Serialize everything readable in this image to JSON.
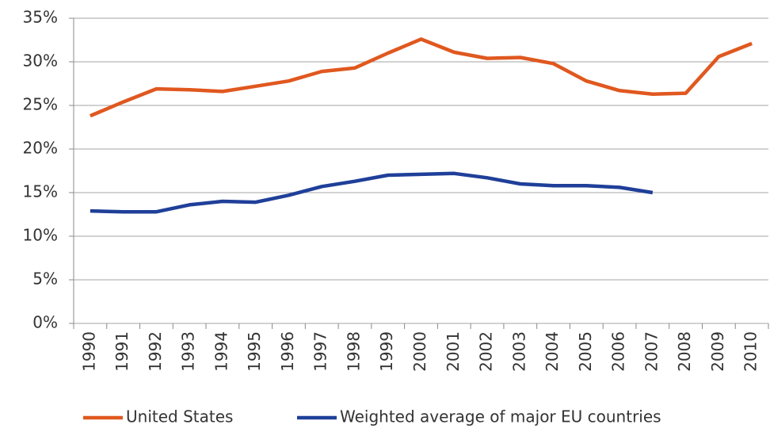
{
  "chart_data": {
    "type": "line",
    "categories": [
      "1990",
      "1991",
      "1992",
      "1993",
      "1994",
      "1995",
      "1996",
      "1997",
      "1998",
      "1999",
      "2000",
      "2001",
      "2002",
      "2003",
      "2004",
      "2005",
      "2006",
      "2007",
      "2008",
      "2009",
      "2010"
    ],
    "series": [
      {
        "name": "United States",
        "color": "#e0581f",
        "values": [
          23.8,
          25.4,
          26.9,
          26.8,
          26.6,
          27.2,
          27.8,
          28.9,
          29.3,
          31.0,
          32.6,
          31.1,
          30.4,
          30.5,
          29.8,
          27.8,
          26.7,
          26.3,
          26.4,
          30.6,
          32.1
        ]
      },
      {
        "name": "Weighted average of major EU countries",
        "color": "#1f3f99",
        "values": [
          12.9,
          12.8,
          12.8,
          13.6,
          14.0,
          13.9,
          14.7,
          15.7,
          16.3,
          17.0,
          17.1,
          17.2,
          16.7,
          16.0,
          15.8,
          15.8,
          15.6,
          15.0,
          null,
          null,
          null
        ]
      }
    ],
    "ylim": [
      0,
      35
    ],
    "yticks": [
      {
        "value": 0,
        "label": "0%"
      },
      {
        "value": 5,
        "label": "5%"
      },
      {
        "value": 10,
        "label": "10%"
      },
      {
        "value": 15,
        "label": "15%"
      },
      {
        "value": 20,
        "label": "20%"
      },
      {
        "value": 25,
        "label": "25%"
      },
      {
        "value": 30,
        "label": "30%"
      },
      {
        "value": 35,
        "label": "35%"
      }
    ],
    "grid": true,
    "legend": "bottom"
  }
}
